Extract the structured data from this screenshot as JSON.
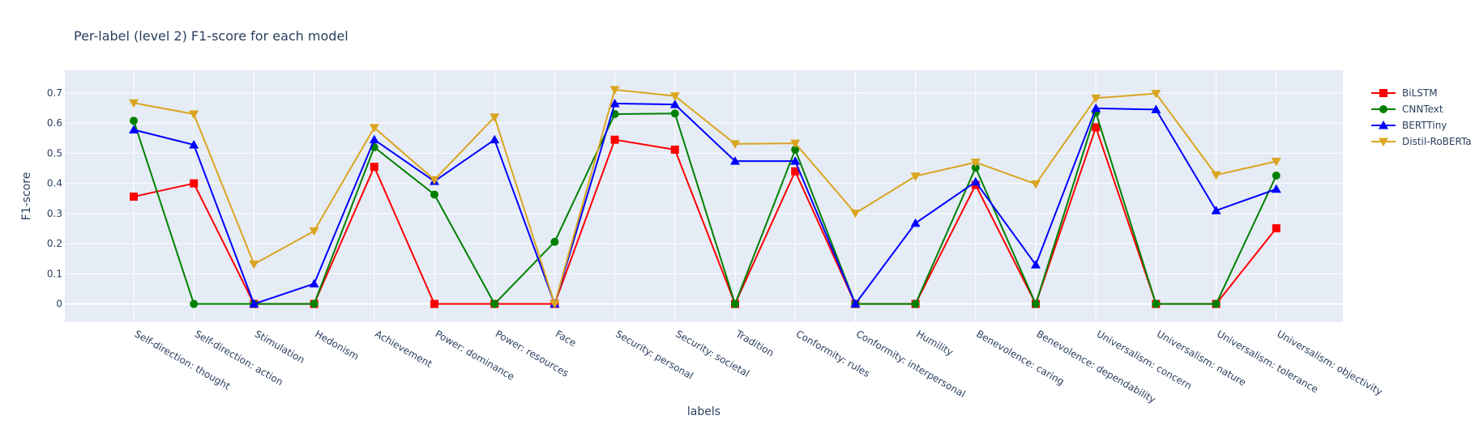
{
  "chart_data": {
    "type": "line",
    "title": "Per-label (level 2) F1-score for each model",
    "xlabel": "labels",
    "ylabel": "F1-score",
    "ylim": [
      -0.06,
      0.775
    ],
    "yticks": [
      "0",
      "0.1",
      "0.2",
      "0.3",
      "0.4",
      "0.5",
      "0.6",
      "0.7"
    ],
    "grid": true,
    "legend_position": "top-right",
    "categories": [
      "Self-direction: thought",
      "Self-direction: action",
      "Stimulation",
      "Hedonism",
      "Achievement",
      "Power: dominance",
      "Power: resources",
      "Face",
      "Security: personal",
      "Security: societal",
      "Tradition",
      "Conformity: rules",
      "Conformity: interpersonal",
      "Humility",
      "Benevolence: caring",
      "Benevolence: dependability",
      "Universalism: concern",
      "Universalism: nature",
      "Universalism: tolerance",
      "Universalism: objectivity"
    ],
    "series": [
      {
        "name": "BiLSTM",
        "color": "#ff0000",
        "marker": "square",
        "values": [
          0.356,
          0.4,
          0.0,
          0.0,
          0.455,
          0.0,
          0.0,
          0.0,
          0.545,
          0.512,
          0.0,
          0.44,
          0.0,
          0.0,
          0.395,
          0.0,
          0.586,
          0.0,
          0.0,
          0.251
        ]
      },
      {
        "name": "CNNText",
        "color": "#008000",
        "marker": "circle",
        "values": [
          0.608,
          0.0,
          0.0,
          0.0,
          0.52,
          0.363,
          0.0,
          0.206,
          0.63,
          0.632,
          0.0,
          0.512,
          0.0,
          0.0,
          0.452,
          0.0,
          0.635,
          0.0,
          0.0,
          0.426
        ]
      },
      {
        "name": "BERTTiny",
        "color": "#0000ff",
        "marker": "triangle-up",
        "values": [
          0.578,
          0.528,
          0.0,
          0.067,
          0.545,
          0.407,
          0.545,
          0.0,
          0.665,
          0.662,
          0.474,
          0.474,
          0.0,
          0.268,
          0.405,
          0.13,
          0.649,
          0.645,
          0.31,
          0.381
        ]
      },
      {
        "name": "Distil-RoBERTa",
        "color": "#daa520",
        "marker": "triangle-down",
        "values": [
          0.667,
          0.63,
          0.132,
          0.242,
          0.585,
          0.412,
          0.62,
          0.0,
          0.711,
          0.69,
          0.531,
          0.533,
          0.301,
          0.424,
          0.47,
          0.398,
          0.683,
          0.698,
          0.428,
          0.473
        ]
      }
    ]
  }
}
